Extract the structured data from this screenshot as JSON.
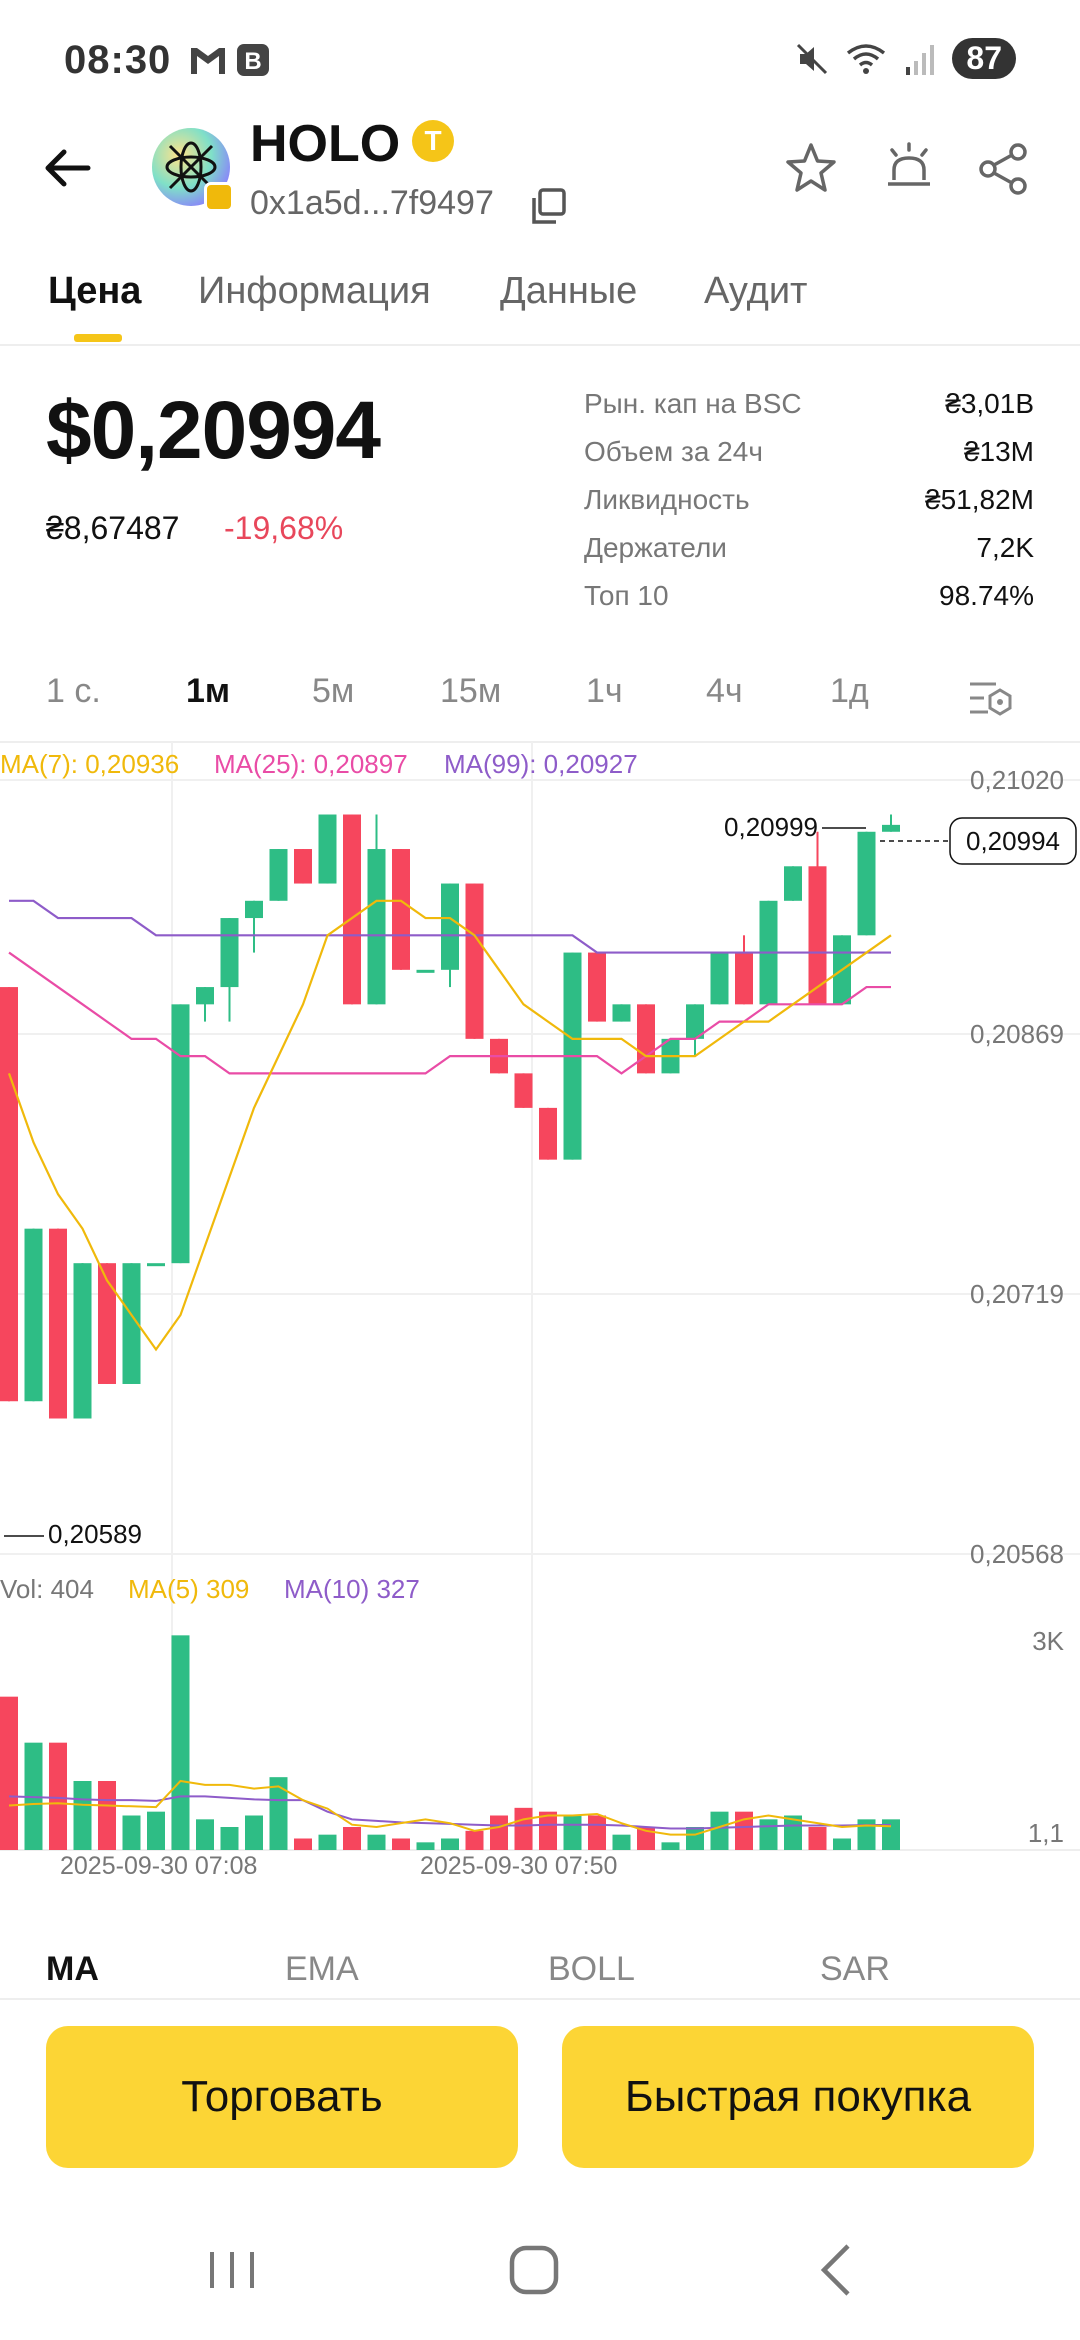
{
  "status_bar": {
    "time": "08:30",
    "battery": "87"
  },
  "header": {
    "token": "HOLO",
    "badge_letter": "T",
    "address": "0x1a5d...7f9497"
  },
  "tabs": [
    "Цена",
    "Информация",
    "Данные",
    "Аудит"
  ],
  "price": {
    "usd": "$0,20994",
    "uah": "₴8,67487",
    "change": "-19,68%"
  },
  "stats": [
    {
      "label": "Рын. кап на BSC",
      "value": "₴3,01B"
    },
    {
      "label": "Объем за 24ч",
      "value": "₴13M"
    },
    {
      "label": "Ликвидность",
      "value": "₴51,82M"
    },
    {
      "label": "Держатели",
      "value": "7,2K"
    },
    {
      "label": "Топ 10",
      "value": "98.74%"
    }
  ],
  "timeframes": [
    "1 с.",
    "1м",
    "5м",
    "15м",
    "1ч",
    "4ч",
    "1д"
  ],
  "chart_data": {
    "type": "candlestick",
    "ma_labels": {
      "ma7": "MA(7): 0,20936",
      "ma25": "MA(25): 0,20897",
      "ma99": "MA(99): 0,20927"
    },
    "y_ticks": [
      "0,21020",
      "0,20869",
      "0,20719",
      "0,20568"
    ],
    "ylim": [
      0.20568,
      0.2102
    ],
    "high_label": "0,20999",
    "low_label": "0,20589",
    "last_price": "0,20994",
    "x_labels": [
      "2025-09-30 07:08",
      "2025-09-30 07:50"
    ],
    "colors": {
      "up": "#2ebd85",
      "down": "#f6465d",
      "ma7": "#f0b90b",
      "ma25": "#e94ca6",
      "ma99": "#8e5cc9"
    },
    "candles": [
      [
        0.209,
        0.209,
        0.2066,
        0.2066
      ],
      [
        0.2066,
        0.2076,
        0.2066,
        0.2076
      ],
      [
        0.2076,
        0.2076,
        0.2065,
        0.2065
      ],
      [
        0.2065,
        0.2074,
        0.2065,
        0.2074
      ],
      [
        0.2074,
        0.2074,
        0.2067,
        0.2067
      ],
      [
        0.2067,
        0.2074,
        0.2067,
        0.2074
      ],
      [
        0.2074,
        0.2074,
        0.2074,
        0.2074
      ],
      [
        0.2074,
        0.2089,
        0.2074,
        0.2089
      ],
      [
        0.2089,
        0.209,
        0.2088,
        0.209
      ],
      [
        0.209,
        0.2094,
        0.2088,
        0.2094
      ],
      [
        0.2094,
        0.2095,
        0.2092,
        0.2095
      ],
      [
        0.2095,
        0.2098,
        0.2095,
        0.2098
      ],
      [
        0.2098,
        0.2098,
        0.2096,
        0.2096
      ],
      [
        0.2096,
        0.21,
        0.2096,
        0.21
      ],
      [
        0.21,
        0.21,
        0.2089,
        0.2089
      ],
      [
        0.2089,
        0.21,
        0.2089,
        0.2098
      ],
      [
        0.2098,
        0.2098,
        0.2091,
        0.2091
      ],
      [
        0.2091,
        0.2091,
        0.2091,
        0.2091
      ],
      [
        0.2091,
        0.2096,
        0.209,
        0.2096
      ],
      [
        0.2096,
        0.2096,
        0.2087,
        0.2087
      ],
      [
        0.2087,
        0.2087,
        0.2085,
        0.2085
      ],
      [
        0.2085,
        0.2085,
        0.2083,
        0.2083
      ],
      [
        0.2083,
        0.2083,
        0.208,
        0.208
      ],
      [
        0.208,
        0.2092,
        0.208,
        0.2092
      ],
      [
        0.2092,
        0.2092,
        0.2088,
        0.2088
      ],
      [
        0.2088,
        0.2089,
        0.2088,
        0.2089
      ],
      [
        0.2089,
        0.2089,
        0.2085,
        0.2085
      ],
      [
        0.2085,
        0.2087,
        0.2085,
        0.2087
      ],
      [
        0.2087,
        0.2089,
        0.2086,
        0.2089
      ],
      [
        0.2089,
        0.2092,
        0.2089,
        0.2092
      ],
      [
        0.2092,
        0.2093,
        0.2089,
        0.2089
      ],
      [
        0.2089,
        0.2095,
        0.2089,
        0.2095
      ],
      [
        0.2095,
        0.2097,
        0.2095,
        0.2097
      ],
      [
        0.2097,
        0.2099,
        0.2089,
        0.2089
      ],
      [
        0.2089,
        0.2093,
        0.2089,
        0.2093
      ],
      [
        0.2093,
        0.2099,
        0.2093,
        0.2099
      ],
      [
        0.2099,
        0.21,
        0.2099,
        0.20994
      ]
    ],
    "ma7": [
      0.2085,
      0.2081,
      0.2078,
      0.2076,
      0.2073,
      0.2071,
      0.2069,
      0.2071,
      0.2075,
      0.2079,
      0.2083,
      0.2086,
      0.2089,
      0.2093,
      0.2094,
      0.2095,
      0.2095,
      0.2094,
      0.2094,
      0.2093,
      0.2091,
      0.2089,
      0.2088,
      0.2087,
      0.2087,
      0.2087,
      0.2086,
      0.2086,
      0.2086,
      0.2087,
      0.2088,
      0.2088,
      0.2089,
      0.209,
      0.2091,
      0.2092,
      0.2093
    ],
    "ma25": [
      0.2092,
      0.2091,
      0.209,
      0.2089,
      0.2088,
      0.2087,
      0.2087,
      0.2086,
      0.2086,
      0.2085,
      0.2085,
      0.2085,
      0.2085,
      0.2085,
      0.2085,
      0.2085,
      0.2085,
      0.2085,
      0.2086,
      0.2086,
      0.2086,
      0.2086,
      0.2086,
      0.2086,
      0.2086,
      0.2085,
      0.2086,
      0.2087,
      0.2087,
      0.2088,
      0.2088,
      0.2089,
      0.2089,
      0.2089,
      0.2089,
      0.209,
      0.209
    ],
    "ma99": [
      0.2095,
      0.2095,
      0.2094,
      0.2094,
      0.2094,
      0.2094,
      0.2093,
      0.2093,
      0.2093,
      0.2093,
      0.2093,
      0.2093,
      0.2093,
      0.2093,
      0.2093,
      0.2093,
      0.2093,
      0.2093,
      0.2093,
      0.2093,
      0.2093,
      0.2093,
      0.2093,
      0.2093,
      0.2092,
      0.2092,
      0.2092,
      0.2092,
      0.2092,
      0.2092,
      0.2092,
      0.2092,
      0.2092,
      0.2092,
      0.2092,
      0.2092,
      0.2092
    ],
    "volume_labels": {
      "vol": "Vol: 404",
      "ma5": "MA(5) 309",
      "ma10": "MA(10) 327"
    },
    "volume_ticks": [
      "3K",
      "1,1"
    ],
    "volume_max": 3000,
    "volumes": [
      2000,
      1400,
      1400,
      900,
      900,
      450,
      500,
      2800,
      400,
      300,
      450,
      950,
      150,
      200,
      300,
      200,
      150,
      100,
      150,
      250,
      450,
      550,
      500,
      450,
      450,
      200,
      300,
      100,
      300,
      500,
      500,
      400,
      450,
      300,
      150,
      400,
      400
    ],
    "vol_ma5": [
      580,
      600,
      610,
      590,
      580,
      570,
      560,
      900,
      850,
      850,
      800,
      830,
      650,
      540,
      330,
      300,
      350,
      400,
      350,
      250,
      300,
      400,
      450,
      450,
      470,
      350,
      250,
      200,
      200,
      300,
      400,
      450,
      400,
      350,
      300,
      320,
      309
    ],
    "vol_ma10": [
      700,
      690,
      680,
      660,
      650,
      650,
      640,
      700,
      700,
      680,
      660,
      650,
      650,
      500,
      400,
      380,
      360,
      350,
      340,
      330,
      320,
      320,
      330,
      330,
      330,
      320,
      300,
      280,
      280,
      290,
      300,
      310,
      320,
      320,
      320,
      325,
      327
    ]
  },
  "indicators": [
    "MA",
    "EMA",
    "BOLL",
    "SAR"
  ],
  "actions": {
    "trade": "Торговать",
    "quick_buy": "Быстрая покупка"
  }
}
